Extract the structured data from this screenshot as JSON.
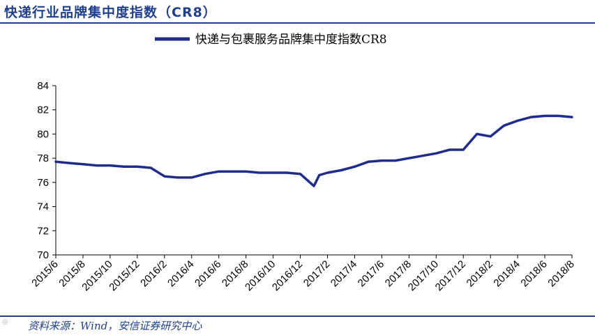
{
  "header": {
    "title": "快递行业品牌集中度指数（CR8）"
  },
  "source": {
    "text": "资料来源：Wind，安信证券研究中心"
  },
  "colors": {
    "accent": "#1f3f8f",
    "series": "#1f2c8c"
  },
  "chart_data": {
    "type": "line",
    "title": "",
    "xlabel": "",
    "ylabel": "",
    "ylim": [
      70,
      84
    ],
    "yticks": [
      70,
      72,
      74,
      76,
      78,
      80,
      82,
      84
    ],
    "grid": false,
    "legend_placement": "top",
    "x_tick_labels": [
      "2015/6",
      "2015/8",
      "2015/10",
      "2015/12",
      "2016/2",
      "2016/4",
      "2016/6",
      "2016/8",
      "2016/10",
      "2016/12",
      "2017/2",
      "2017/4",
      "2017/6",
      "2017/8",
      "2017/10",
      "2017/12",
      "2018/2",
      "2018/4",
      "2018/6",
      "2018/8"
    ],
    "series": [
      {
        "name": "快递与包裹服务品牌集中度指数CR8",
        "x": [
          "2015/6",
          "2015/7",
          "2015/8",
          "2015/9",
          "2015/10",
          "2015/11",
          "2015/12",
          "2016/1",
          "2016/2",
          "2016/3",
          "2016/4",
          "2016/5",
          "2016/6",
          "2016/7",
          "2016/8",
          "2016/9",
          "2016/10",
          "2016/11",
          "2016/12",
          "2017/1",
          "2017/1",
          "2017/2",
          "2017/3",
          "2017/4",
          "2017/5",
          "2017/6",
          "2017/7",
          "2017/8",
          "2017/9",
          "2017/10",
          "2017/11",
          "2017/12",
          "2018/1",
          "2018/2",
          "2018/3",
          "2018/4",
          "2018/5",
          "2018/6",
          "2018/7",
          "2018/8"
        ],
        "values": [
          77.7,
          77.6,
          77.5,
          77.4,
          77.4,
          77.3,
          77.3,
          77.2,
          76.5,
          76.4,
          76.4,
          76.7,
          76.9,
          76.9,
          76.9,
          76.8,
          76.8,
          76.8,
          76.7,
          75.7,
          76.6,
          76.8,
          77.0,
          77.3,
          77.7,
          77.8,
          77.8,
          78.0,
          78.2,
          78.4,
          78.7,
          78.7,
          80.0,
          79.8,
          80.7,
          81.1,
          81.4,
          81.5,
          81.5,
          81.4
        ]
      }
    ]
  }
}
